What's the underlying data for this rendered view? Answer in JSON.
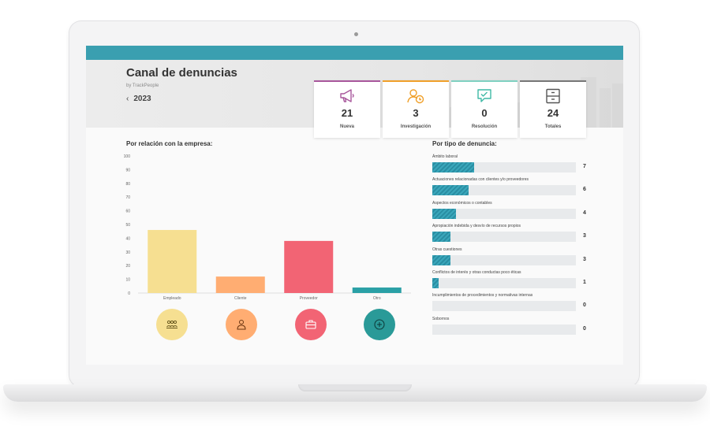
{
  "app": {
    "title": "Canal de denuncias",
    "byline": "by TrackPeople",
    "year": "2023"
  },
  "colors": {
    "topbar": "#3a9fb0",
    "nueva": "#a8579c",
    "investigacion": "#f0a02a",
    "resolucion": "#7fd1c1",
    "totales": "#666666"
  },
  "stats": [
    {
      "value": "21",
      "label": "Nueva",
      "icon": "megaphone-icon",
      "color": "#a8579c"
    },
    {
      "value": "3",
      "label": "Investigación",
      "icon": "user-clock-icon",
      "color": "#f0a02a"
    },
    {
      "value": "0",
      "label": "Resolución",
      "icon": "chat-check-icon",
      "color": "#3fb9a5"
    },
    {
      "value": "24",
      "label": "Totales",
      "icon": "archive-icon",
      "color": "#666666"
    }
  ],
  "sections": {
    "relation_title": "Por relación con la empresa:",
    "type_title": "Por tipo de denuncia:"
  },
  "chart_data": {
    "type": "bar",
    "title": "Por relación con la empresa:",
    "categories": [
      "Empleado",
      "Cliente",
      "Proveedor",
      "Otro"
    ],
    "values": [
      46,
      12,
      38,
      4
    ],
    "colors": [
      "#f6df91",
      "#ffad72",
      "#f26474",
      "#2aa0a6"
    ],
    "ylim": [
      0,
      100
    ],
    "yticks": [
      "0",
      "10",
      "20",
      "30",
      "40",
      "50",
      "60",
      "70",
      "80",
      "90",
      "100"
    ],
    "grid": false
  },
  "category_icons": [
    {
      "name": "team-icon",
      "color": "#f6df91"
    },
    {
      "name": "client-icon",
      "color": "#ffad72"
    },
    {
      "name": "briefcase-icon",
      "color": "#f26474"
    },
    {
      "name": "plus-circle-icon",
      "color": "#2a9a98"
    }
  ],
  "types": [
    {
      "label": "Ámbito laboral",
      "count": "7",
      "value": 7
    },
    {
      "label": "Actuaciones relacionadas con clientes y/o proveedores",
      "count": "6",
      "value": 6
    },
    {
      "label": "Aspectos económicos o contables",
      "count": "4",
      "value": 4
    },
    {
      "label": "Apropiación indebida y desvío de recursos propios",
      "count": "3",
      "value": 3
    },
    {
      "label": "Otras cuestiones",
      "count": "3",
      "value": 3
    },
    {
      "label": "Conflictos de interés y otras conductas poco éticas",
      "count": "1",
      "value": 1
    },
    {
      "label": "Incumplimientos de procedimientos y normativas internas",
      "count": "0",
      "value": 0
    },
    {
      "label": "Sobornos",
      "count": "0",
      "value": 0
    }
  ],
  "types_max": 24
}
